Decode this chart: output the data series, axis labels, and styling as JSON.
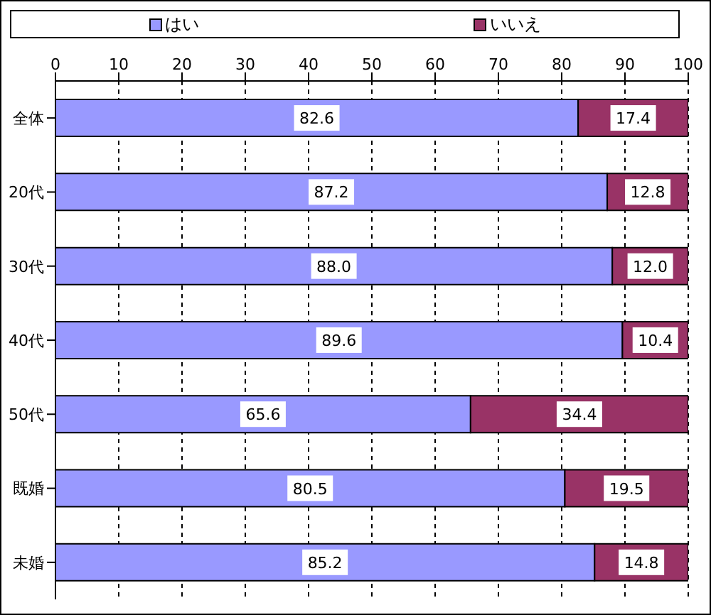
{
  "chart_data": {
    "type": "bar",
    "orientation": "horizontal",
    "stacked": true,
    "categories": [
      "全体",
      "20代",
      "30代",
      "40代",
      "50代",
      "既婚",
      "未婚"
    ],
    "series": [
      {
        "name": "はい",
        "color": "#9999ff",
        "values": [
          82.6,
          87.2,
          88.0,
          89.6,
          65.6,
          80.5,
          85.2
        ],
        "value_labels": [
          "82.6",
          "87.2",
          "88.0",
          "89.6",
          "65.6",
          "80.5",
          "85.2"
        ]
      },
      {
        "name": "いいえ",
        "color": "#993366",
        "values": [
          17.4,
          12.8,
          12.0,
          10.4,
          34.4,
          19.5,
          14.8
        ],
        "value_labels": [
          "17.4",
          "12.8",
          "12.0",
          "10.4",
          "34.4",
          "19.5",
          "14.8"
        ]
      }
    ],
    "xlim": [
      0,
      100
    ],
    "xticks": [
      0,
      10,
      20,
      30,
      40,
      50,
      60,
      70,
      80,
      90,
      100
    ],
    "grid": "x",
    "legend": "top"
  }
}
